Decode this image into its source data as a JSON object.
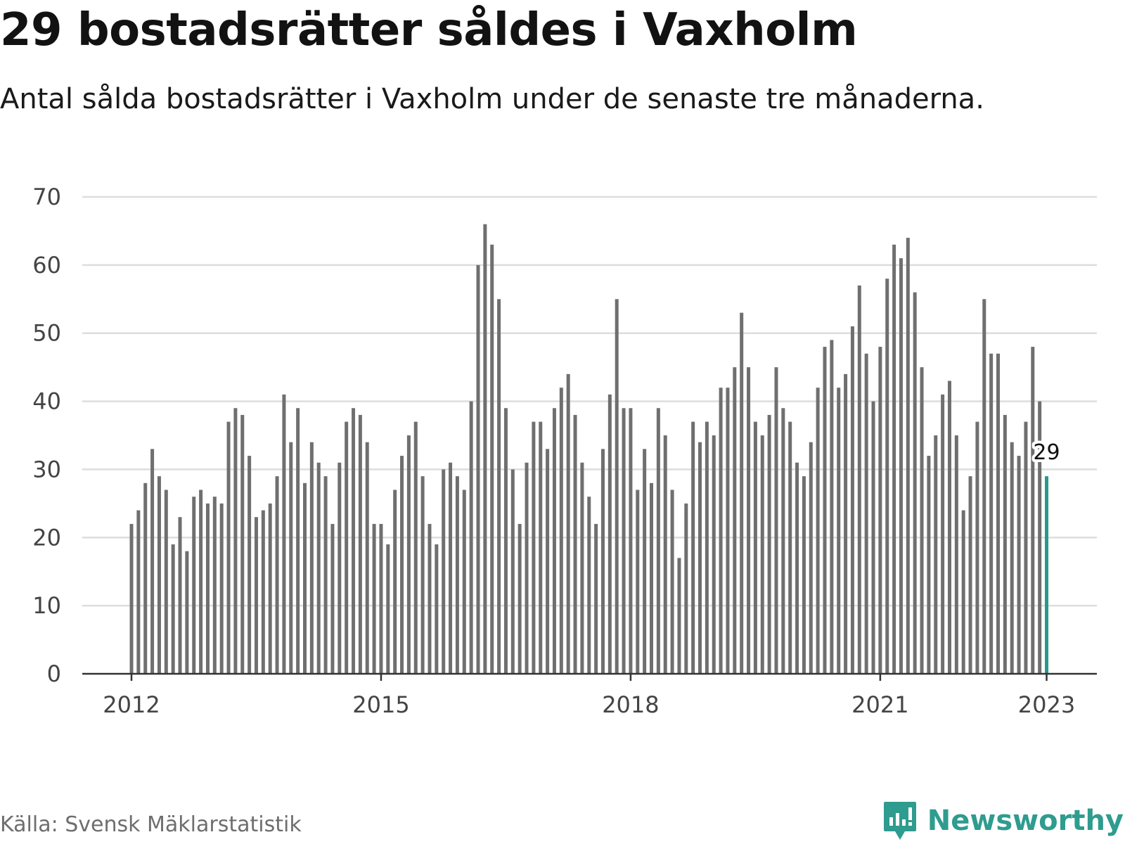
{
  "header": {
    "title": "29 bostadsrätter såldes i Vaxholm",
    "subtitle": "Antal sålda bostadsrätter i Vaxholm under de senaste tre månaderna."
  },
  "footer": {
    "source": "Källa: Svensk Mäklarstatistik",
    "brand": "Newsworthy",
    "brand_icon": "newsworthy-logo-icon"
  },
  "colors": {
    "bar": "#6f6f6f",
    "highlight": "#26998e",
    "grid": "#dddddd",
    "axis": "#333333",
    "brand": "#2e9c8f"
  },
  "chart_data": {
    "type": "bar",
    "x_start": "2012-01",
    "x_step": "month",
    "ylim": [
      0,
      70
    ],
    "yticks": [
      0,
      10,
      20,
      30,
      40,
      50,
      60,
      70
    ],
    "xticks": [
      "2012",
      "2015",
      "2018",
      "2021",
      "2023"
    ],
    "grid": true,
    "highlight_label": "29",
    "values": [
      22,
      24,
      28,
      33,
      29,
      27,
      19,
      23,
      18,
      26,
      27,
      25,
      26,
      25,
      37,
      39,
      38,
      32,
      23,
      24,
      25,
      29,
      41,
      34,
      39,
      28,
      34,
      31,
      29,
      22,
      31,
      37,
      39,
      38,
      34,
      22,
      22,
      19,
      27,
      32,
      35,
      37,
      29,
      22,
      19,
      30,
      31,
      29,
      27,
      40,
      60,
      66,
      63,
      55,
      39,
      30,
      22,
      31,
      37,
      37,
      33,
      39,
      42,
      44,
      38,
      31,
      26,
      22,
      33,
      41,
      55,
      39,
      39,
      27,
      33,
      28,
      39,
      35,
      27,
      17,
      25,
      37,
      34,
      37,
      35,
      42,
      42,
      45,
      53,
      45,
      37,
      35,
      38,
      45,
      39,
      37,
      31,
      29,
      34,
      42,
      48,
      49,
      42,
      44,
      51,
      57,
      47,
      40,
      48,
      58,
      63,
      61,
      64,
      56,
      45,
      32,
      35,
      41,
      43,
      35,
      24,
      29,
      37,
      55,
      47,
      47,
      38,
      34,
      32,
      37,
      48,
      40,
      29
    ]
  }
}
